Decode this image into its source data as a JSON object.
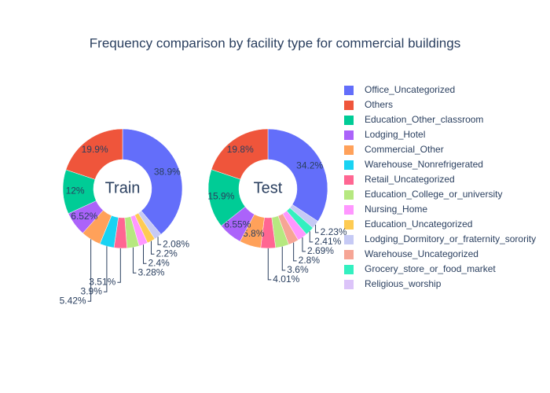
{
  "chart_data": {
    "type": "pie",
    "title": "Frequency comparison by facility type for commercial buildings",
    "series": [
      {
        "name": "Office_Uncategorized",
        "color": "#636efa"
      },
      {
        "name": "Others",
        "color": "#EF553B"
      },
      {
        "name": "Education_Other_classroom",
        "color": "#00cc96"
      },
      {
        "name": "Lodging_Hotel",
        "color": "#ab63fa"
      },
      {
        "name": "Commercial_Other",
        "color": "#FFA15A"
      },
      {
        "name": "Warehouse_Nonrefrigerated",
        "color": "#19d3f3"
      },
      {
        "name": "Retail_Uncategorized",
        "color": "#FF6692"
      },
      {
        "name": "Education_College_or_university",
        "color": "#B6E880"
      },
      {
        "name": "Nursing_Home",
        "color": "#FF97FF"
      },
      {
        "name": "Education_Uncategorized",
        "color": "#FECB52"
      },
      {
        "name": "Lodging_Dormitory_or_fraternity_sorority",
        "color": "#c6caf5"
      },
      {
        "name": "Warehouse_Uncategorized",
        "color": "#f6a595"
      },
      {
        "name": "Grocery_store_or_food_market",
        "color": "#33f0c0"
      },
      {
        "name": "Religious_worship",
        "color": "#dcc4f9"
      }
    ],
    "pies": [
      {
        "name": "Train",
        "labels": [
          "Office_Uncategorized",
          "Lodging_Dormitory_or_fraternity_sorority",
          "Education_Uncategorized",
          "Nursing_Home",
          "Education_College_or_university",
          "Retail_Uncategorized",
          "Warehouse_Nonrefrigerated",
          "Commercial_Other",
          "Lodging_Hotel",
          "Education_Other_classroom",
          "Others"
        ],
        "values": [
          38.9,
          2.08,
          2.2,
          2.4,
          3.28,
          3.51,
          3.9,
          5.42,
          6.52,
          12,
          19.9
        ],
        "value_labels": [
          "38.9%",
          "2.08%",
          "2.2%",
          "2.4%",
          "3.28%",
          "3.51%",
          "3.9%",
          "5.42%",
          "6.52%",
          "12%",
          "19.9%"
        ]
      },
      {
        "name": "Test",
        "labels": [
          "Office_Uncategorized",
          "Lodging_Dormitory_or_fraternity_sorority",
          "Grocery_store_or_food_market",
          "Nursing_Home",
          "Warehouse_Uncategorized",
          "Education_College_or_university",
          "Retail_Uncategorized",
          "Commercial_Other",
          "Lodging_Hotel",
          "Education_Other_classroom",
          "Others"
        ],
        "values": [
          34.2,
          2.23,
          2.41,
          2.69,
          2.8,
          3.6,
          4.01,
          5.8,
          6.55,
          15.9,
          19.8
        ],
        "value_labels": [
          "34.2%",
          "2.23%",
          "2.41%",
          "2.69%",
          "2.8%",
          "3.6%",
          "4.01%",
          "5.8%",
          "6.55%",
          "15.9%",
          "19.8%"
        ]
      }
    ]
  }
}
